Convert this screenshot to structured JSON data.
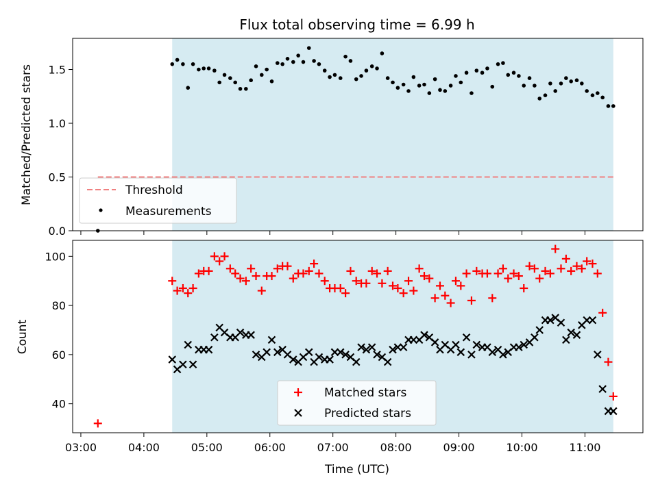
{
  "title": "Flux total observing time = 6.99 h",
  "x_label": "Time (UTC)",
  "x_ticks": [
    "03:00",
    "04:00",
    "05:00",
    "06:00",
    "07:00",
    "08:00",
    "09:00",
    "10:00",
    "11:00"
  ],
  "colors": {
    "band": "#add8e6",
    "matched": "#ff0000",
    "predicted": "#000000",
    "threshold": "#f08080",
    "measurements": "#000000"
  },
  "chart_data": [
    {
      "type": "scatter",
      "ylabel": "Matched/Predicted stars",
      "ylim": [
        0,
        1.79
      ],
      "y_ticks": [
        "0.0",
        "0.5",
        "1.0",
        "1.5"
      ],
      "xlim_hours": [
        2.87,
        11.92
      ],
      "shaded_span_hours": [
        4.45,
        11.45
      ],
      "threshold": {
        "name": "Threshold",
        "value": 0.5,
        "x_start_hours": 3.27,
        "x_end_hours": 11.45
      },
      "legend": {
        "placement": "lower-left",
        "entries": [
          "Threshold",
          "Measurements"
        ]
      },
      "series": [
        {
          "name": "Measurements",
          "x_hours": [
            3.27,
            4.45,
            4.53,
            4.62,
            4.7,
            4.78,
            4.87,
            4.95,
            5.03,
            5.12,
            5.2,
            5.28,
            5.37,
            5.45,
            5.53,
            5.62,
            5.7,
            5.78,
            5.87,
            5.95,
            6.03,
            6.12,
            6.2,
            6.28,
            6.37,
            6.45,
            6.53,
            6.62,
            6.7,
            6.78,
            6.87,
            6.95,
            7.03,
            7.12,
            7.2,
            7.28,
            7.37,
            7.45,
            7.53,
            7.62,
            7.7,
            7.78,
            7.87,
            7.95,
            8.03,
            8.12,
            8.2,
            8.28,
            8.37,
            8.45,
            8.53,
            8.62,
            8.7,
            8.78,
            8.87,
            8.95,
            9.03,
            9.12,
            9.2,
            9.28,
            9.37,
            9.45,
            9.53,
            9.62,
            9.7,
            9.78,
            9.87,
            9.95,
            10.03,
            10.12,
            10.2,
            10.28,
            10.37,
            10.45,
            10.53,
            10.62,
            10.7,
            10.78,
            10.87,
            10.95,
            11.03,
            11.12,
            11.2,
            11.28,
            11.37,
            11.45
          ],
          "y": [
            0.0,
            1.55,
            1.59,
            1.55,
            1.33,
            1.55,
            1.5,
            1.51,
            1.51,
            1.49,
            1.38,
            1.45,
            1.42,
            1.38,
            1.32,
            1.32,
            1.4,
            1.53,
            1.45,
            1.5,
            1.39,
            1.56,
            1.55,
            1.6,
            1.57,
            1.63,
            1.57,
            1.7,
            1.58,
            1.55,
            1.49,
            1.43,
            1.45,
            1.42,
            1.62,
            1.58,
            1.41,
            1.44,
            1.49,
            1.53,
            1.51,
            1.65,
            1.42,
            1.38,
            1.33,
            1.36,
            1.3,
            1.43,
            1.35,
            1.36,
            1.28,
            1.41,
            1.31,
            1.3,
            1.35,
            1.44,
            1.38,
            1.47,
            1.28,
            1.49,
            1.47,
            1.51,
            1.34,
            1.55,
            1.56,
            1.45,
            1.47,
            1.44,
            1.35,
            1.42,
            1.35,
            1.23,
            1.26,
            1.37,
            1.3,
            1.37,
            1.42,
            1.39,
            1.4,
            1.37,
            1.3,
            1.26,
            1.28,
            1.24,
            1.16,
            1.16
          ]
        }
      ]
    },
    {
      "type": "scatter",
      "ylabel": "Count",
      "ylim": [
        28.2,
        106.5
      ],
      "y_ticks": [
        "40",
        "60",
        "80",
        "100"
      ],
      "xlim_hours": [
        2.87,
        11.92
      ],
      "shaded_span_hours": [
        4.45,
        11.45
      ],
      "legend": {
        "placement": "lower-center",
        "entries": [
          "Matched stars",
          "Predicted stars"
        ]
      },
      "series": [
        {
          "name": "Matched stars",
          "marker": "plus",
          "x_hours": [
            3.27,
            4.45,
            4.53,
            4.62,
            4.7,
            4.78,
            4.87,
            4.95,
            5.03,
            5.12,
            5.2,
            5.28,
            5.37,
            5.45,
            5.53,
            5.62,
            5.7,
            5.78,
            5.87,
            5.95,
            6.03,
            6.12,
            6.2,
            6.28,
            6.37,
            6.45,
            6.53,
            6.62,
            6.7,
            6.78,
            6.87,
            6.95,
            7.03,
            7.12,
            7.2,
            7.28,
            7.37,
            7.45,
            7.53,
            7.62,
            7.7,
            7.78,
            7.87,
            7.95,
            8.03,
            8.12,
            8.2,
            8.28,
            8.37,
            8.45,
            8.53,
            8.62,
            8.7,
            8.78,
            8.87,
            8.95,
            9.03,
            9.12,
            9.2,
            9.28,
            9.37,
            9.45,
            9.53,
            9.62,
            9.7,
            9.78,
            9.87,
            9.95,
            10.03,
            10.12,
            10.2,
            10.28,
            10.37,
            10.45,
            10.53,
            10.62,
            10.7,
            10.78,
            10.87,
            10.95,
            11.03,
            11.12,
            11.2,
            11.28,
            11.37,
            11.45
          ],
          "y": [
            32,
            90,
            86,
            87,
            85,
            87,
            93,
            94,
            94,
            100,
            98,
            100,
            95,
            93,
            91,
            90,
            95,
            92,
            86,
            92,
            92,
            95,
            96,
            96,
            91,
            93,
            93,
            94,
            97,
            93,
            90,
            87,
            87,
            87,
            85,
            94,
            90,
            89,
            89,
            94,
            93,
            89,
            94,
            88,
            87,
            85,
            90,
            86,
            95,
            92,
            91,
            83,
            88,
            84,
            81,
            90,
            88,
            93,
            82,
            94,
            93,
            93,
            83,
            93,
            95,
            91,
            93,
            92,
            87,
            96,
            95,
            91,
            94,
            93,
            103,
            95,
            99,
            94,
            96,
            95,
            98,
            97,
            93,
            77,
            57,
            43
          ]
        },
        {
          "name": "Predicted stars",
          "marker": "x",
          "x_hours": [
            4.45,
            4.53,
            4.62,
            4.7,
            4.78,
            4.87,
            4.95,
            5.03,
            5.12,
            5.2,
            5.28,
            5.37,
            5.45,
            5.53,
            5.62,
            5.7,
            5.78,
            5.87,
            5.95,
            6.03,
            6.12,
            6.2,
            6.28,
            6.37,
            6.45,
            6.53,
            6.62,
            6.7,
            6.78,
            6.87,
            6.95,
            7.03,
            7.12,
            7.2,
            7.28,
            7.37,
            7.45,
            7.53,
            7.62,
            7.7,
            7.78,
            7.87,
            7.95,
            8.03,
            8.12,
            8.2,
            8.28,
            8.37,
            8.45,
            8.53,
            8.62,
            8.7,
            8.78,
            8.87,
            8.95,
            9.03,
            9.12,
            9.2,
            9.28,
            9.37,
            9.45,
            9.53,
            9.62,
            9.7,
            9.78,
            9.87,
            9.95,
            10.03,
            10.12,
            10.2,
            10.28,
            10.37,
            10.45,
            10.53,
            10.62,
            10.7,
            10.78,
            10.87,
            10.95,
            11.03,
            11.12,
            11.2,
            11.28,
            11.37,
            11.45
          ],
          "y": [
            58,
            54,
            56,
            64,
            56,
            62,
            62,
            62,
            67,
            71,
            69,
            67,
            67,
            69,
            68,
            68,
            60,
            59,
            61,
            66,
            61,
            62,
            60,
            58,
            57,
            59,
            61,
            57,
            59,
            58,
            58,
            61,
            61,
            60,
            59,
            57,
            63,
            62,
            63,
            60,
            59,
            57,
            62,
            63,
            63,
            66,
            66,
            66,
            68,
            67,
            65,
            62,
            64,
            62,
            64,
            61,
            67,
            60,
            64,
            63,
            63,
            61,
            62,
            60,
            61,
            63,
            63,
            64,
            65,
            67,
            70,
            74,
            74,
            75,
            73,
            66,
            69,
            68,
            72,
            74,
            74,
            60,
            46,
            37,
            37
          ]
        }
      ]
    }
  ]
}
